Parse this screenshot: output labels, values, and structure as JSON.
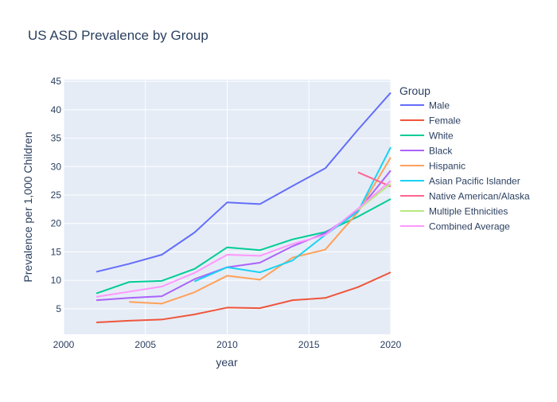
{
  "chart_data": {
    "type": "line",
    "title": "US ASD Prevalence by Group",
    "xlabel": "year",
    "ylabel": "Prevalence per 1,000 Children",
    "xlim": [
      2000,
      2020
    ],
    "ylim": [
      0.5,
      45.3
    ],
    "x_ticks": [
      2000,
      2005,
      2010,
      2015,
      2020
    ],
    "y_ticks": [
      5,
      10,
      15,
      20,
      25,
      30,
      35,
      40,
      45
    ],
    "grid": true,
    "legend_title": "Group",
    "legend_position": "right",
    "series": [
      {
        "name": "Male",
        "color": "#636efa",
        "points": [
          [
            2002,
            11.5
          ],
          [
            2004,
            12.9
          ],
          [
            2006,
            14.5
          ],
          [
            2008,
            18.4
          ],
          [
            2010,
            23.7
          ],
          [
            2012,
            23.4
          ],
          [
            2014,
            26.6
          ],
          [
            2016,
            29.7
          ],
          [
            2018,
            36.5
          ],
          [
            2020,
            43.0
          ]
        ]
      },
      {
        "name": "Female",
        "color": "#ef553b",
        "points": [
          [
            2002,
            2.6
          ],
          [
            2004,
            2.9
          ],
          [
            2006,
            3.1
          ],
          [
            2008,
            4.0
          ],
          [
            2010,
            5.2
          ],
          [
            2012,
            5.1
          ],
          [
            2014,
            6.5
          ],
          [
            2016,
            6.9
          ],
          [
            2018,
            8.8
          ],
          [
            2020,
            11.4
          ]
        ]
      },
      {
        "name": "White",
        "color": "#00cc96",
        "points": [
          [
            2002,
            7.7
          ],
          [
            2004,
            9.7
          ],
          [
            2006,
            9.9
          ],
          [
            2008,
            12.0
          ],
          [
            2010,
            15.8
          ],
          [
            2012,
            15.3
          ],
          [
            2014,
            17.2
          ],
          [
            2016,
            18.5
          ],
          [
            2018,
            21.2
          ],
          [
            2020,
            24.3
          ]
        ]
      },
      {
        "name": "Black",
        "color": "#ab63fa",
        "points": [
          [
            2002,
            6.5
          ],
          [
            2004,
            6.9
          ],
          [
            2006,
            7.2
          ],
          [
            2008,
            10.2
          ],
          [
            2010,
            12.3
          ],
          [
            2012,
            13.1
          ],
          [
            2014,
            16.0
          ],
          [
            2016,
            18.3
          ],
          [
            2018,
            22.2
          ],
          [
            2020,
            29.3
          ]
        ]
      },
      {
        "name": "Hispanic",
        "color": "#ffa15a",
        "points": [
          [
            2004,
            6.2
          ],
          [
            2006,
            5.9
          ],
          [
            2008,
            7.9
          ],
          [
            2010,
            10.8
          ],
          [
            2012,
            10.1
          ],
          [
            2014,
            14.0
          ],
          [
            2016,
            15.4
          ],
          [
            2018,
            22.0
          ],
          [
            2020,
            31.6
          ]
        ]
      },
      {
        "name": "Asian Pacific Islander",
        "color": "#19d3f3",
        "points": [
          [
            2008,
            9.8
          ],
          [
            2010,
            12.3
          ],
          [
            2012,
            11.4
          ],
          [
            2014,
            13.5
          ],
          [
            2016,
            18.0
          ],
          [
            2018,
            22.1
          ],
          [
            2020,
            33.4
          ]
        ]
      },
      {
        "name": "Native American/Alaska",
        "color": "#ff6692",
        "points": [
          [
            2018,
            29.0
          ],
          [
            2020,
            26.5
          ]
        ]
      },
      {
        "name": "Multiple Ethnicities",
        "color": "#b6e880",
        "points": [
          [
            2018,
            22.4
          ],
          [
            2020,
            27.0
          ]
        ]
      },
      {
        "name": "Combined Average",
        "color": "#ff97ff",
        "points": [
          [
            2002,
            7.1
          ],
          [
            2004,
            8.0
          ],
          [
            2006,
            8.9
          ],
          [
            2008,
            11.3
          ],
          [
            2010,
            14.5
          ],
          [
            2012,
            14.3
          ],
          [
            2014,
            16.4
          ],
          [
            2016,
            18.0
          ],
          [
            2018,
            22.6
          ],
          [
            2020,
            27.5
          ]
        ]
      }
    ]
  }
}
